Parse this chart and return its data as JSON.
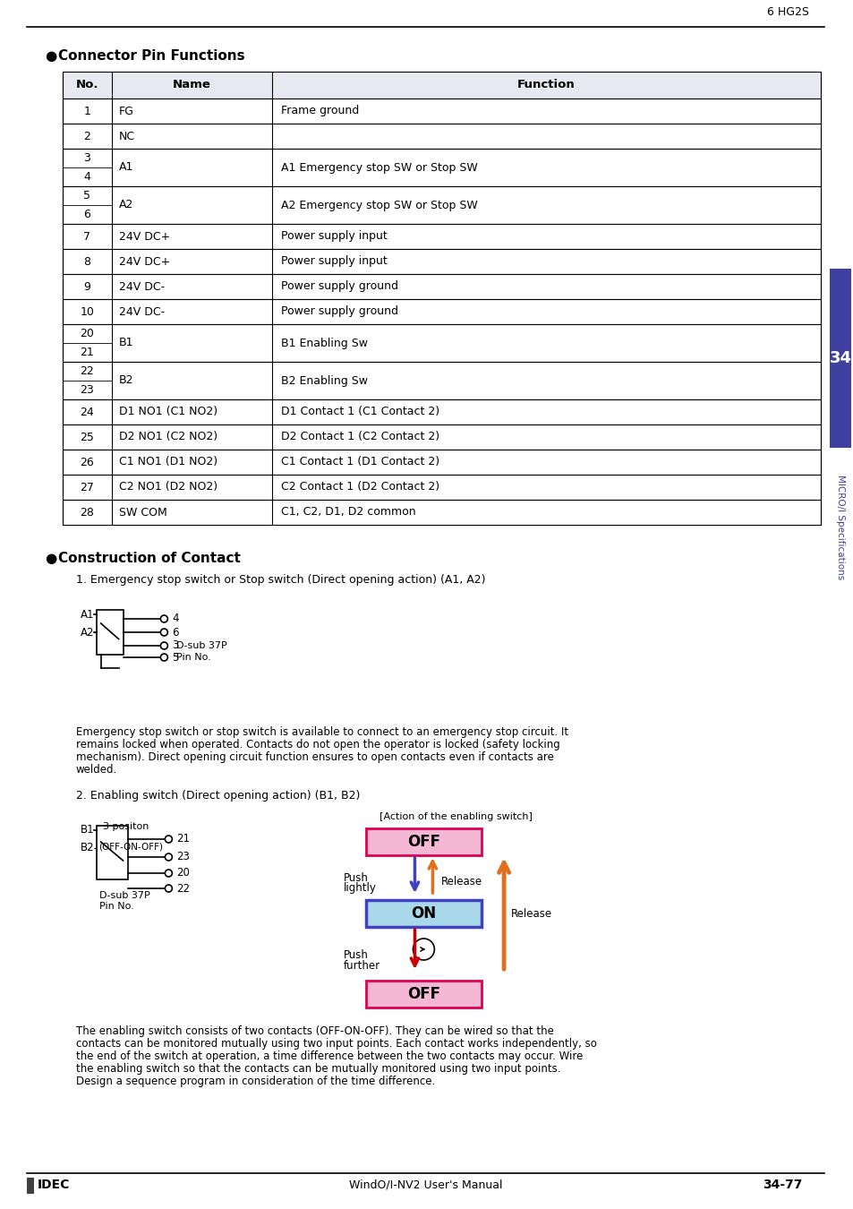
{
  "page_header": "6 HG2S",
  "section1_title": "Connector Pin Functions",
  "table_header": [
    "No.",
    "Name",
    "Function"
  ],
  "table_rows": [
    [
      "1",
      "FG",
      "Frame ground"
    ],
    [
      "2",
      "NC",
      ""
    ],
    [
      "3/4",
      "A1",
      "A1 Emergency stop SW or Stop SW"
    ],
    [
      "5/6",
      "A2",
      "A2 Emergency stop SW or Stop SW"
    ],
    [
      "7",
      "24V DC+",
      "Power supply input"
    ],
    [
      "8",
      "24V DC+",
      "Power supply input"
    ],
    [
      "9",
      "24V DC-",
      "Power supply ground"
    ],
    [
      "10",
      "24V DC-",
      "Power supply ground"
    ],
    [
      "20/21",
      "B1",
      "B1 Enabling Sw"
    ],
    [
      "22/23",
      "B2",
      "B2 Enabling Sw"
    ],
    [
      "24",
      "D1 NO1 (C1 NO2)",
      "D1 Contact 1 (C1 Contact 2)"
    ],
    [
      "25",
      "D2 NO1 (C2 NO2)",
      "D2 Contact 1 (C2 Contact 2)"
    ],
    [
      "26",
      "C1 NO1 (D1 NO2)",
      "C1 Contact 1 (D1 Contact 2)"
    ],
    [
      "27",
      "C2 NO1 (D2 NO2)",
      "C2 Contact 1 (D2 Contact 2)"
    ],
    [
      "28",
      "SW COM",
      "C1, C2, D1, D2 common"
    ]
  ],
  "section2_title": "Construction of Contact",
  "sub1_title": "1. Emergency stop switch or Stop switch (Direct opening action) (A1, A2)",
  "sub2_title": "2. Enabling switch (Direct opening action) (B1, B2)",
  "para1": "Emergency stop switch or stop switch is available to connect to an emergency stop circuit. It remains locked when operated. Contacts do not open the operator is locked (safety locking mechanism). Direct opening circuit function ensures to open contacts even if contacts are welded.",
  "para2": "The enabling switch consists of two contacts (OFF-ON-OFF). They can be wired so that the contacts can be monitored mutually using two input points. Each contact works independently, so the end of the switch at operation, a time difference between the two contacts may occur. Wire the enabling switch so that the contacts can be mutually monitored using two input points. Design a sequence program in consideration of the time difference.",
  "action_label": "[Action of the enabling switch]",
  "off_color": "#f4b8d4",
  "on_color": "#a8d8ea",
  "off_border": "#e0004f",
  "on_border": "#4040c0",
  "arrow_down_blue": "#4040c0",
  "arrow_up_orange": "#e07020",
  "arrow_down_red": "#cc0000",
  "sidebar_color": "#4040a0",
  "sidebar_text": "MICRO/I Specifications",
  "chapter_num": "34",
  "header_bg": "#e8e8f0",
  "page_footer": "WindO/I-NV2 User's Manual",
  "page_num": "34-77",
  "footer_brand": "IDEC"
}
